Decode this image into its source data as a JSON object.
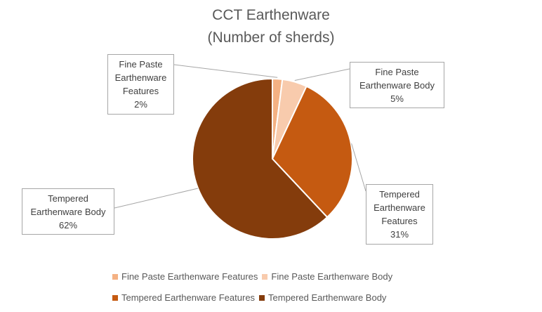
{
  "chart_data": {
    "type": "pie",
    "title_lines": [
      "CCT Earthenware",
      "(Number of sherds)"
    ],
    "slices": [
      {
        "name": "Fine Paste Earthenware Features",
        "label_lines": [
          "Fine Paste",
          "Earthenware",
          "Features",
          "2%"
        ],
        "value": 2,
        "color": "#F4B183"
      },
      {
        "name": "Fine Paste Earthenware Body",
        "label_lines": [
          "Fine Paste",
          "Earthenware Body",
          "5%"
        ],
        "value": 5,
        "color": "#F8CBAD"
      },
      {
        "name": "Tempered Earthenware Features",
        "label_lines": [
          "Tempered",
          "Earthenware",
          "Features",
          "31%"
        ],
        "value": 31,
        "color": "#C55A11"
      },
      {
        "name": "Tempered Earthenware Body",
        "label_lines": [
          "Tempered",
          "Earthenware Body",
          "62%"
        ],
        "value": 62,
        "color": "#843C0C"
      }
    ],
    "legend": [
      "Fine Paste Earthenware Features",
      "Fine Paste Earthenware Body",
      "Tempered Earthenware Features",
      "Tempered Earthenware Body"
    ],
    "legend_placement": "bottom"
  }
}
